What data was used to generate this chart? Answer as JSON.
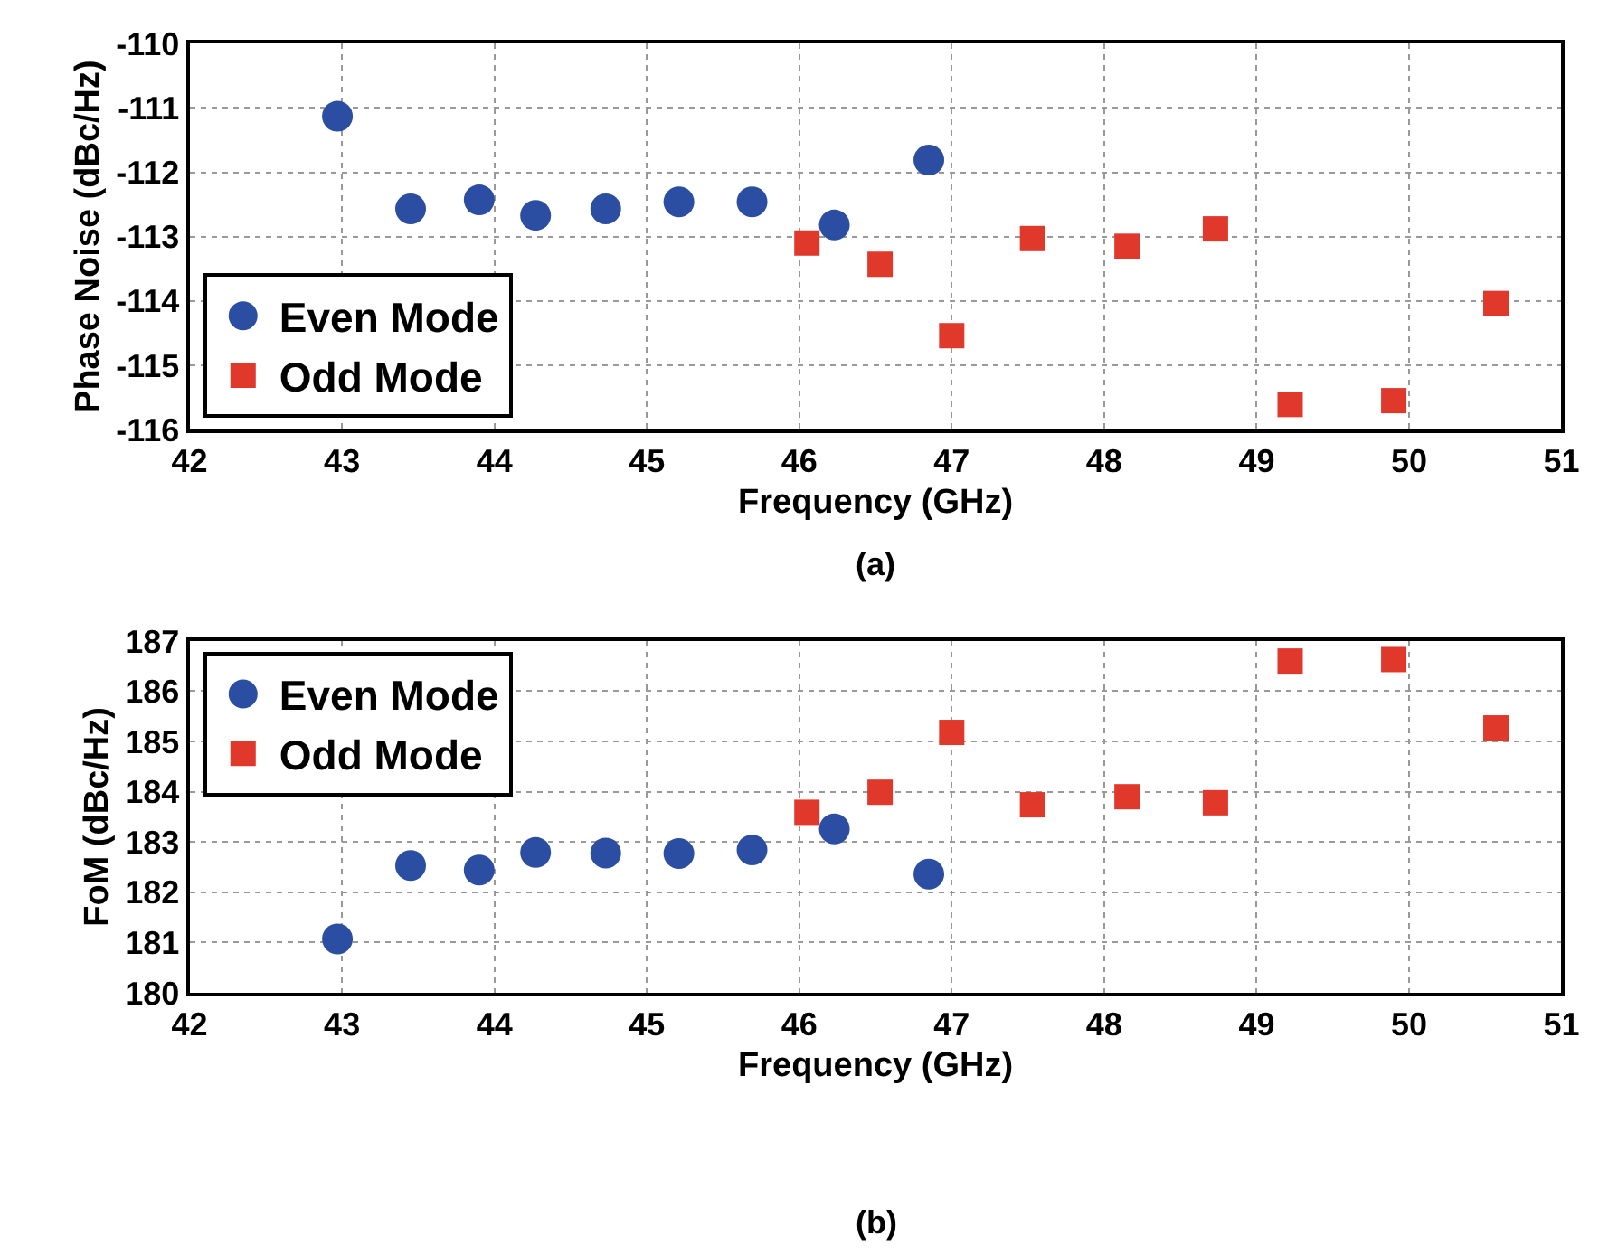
{
  "chart_data": [
    {
      "type": "scatter",
      "xlabel": "Frequency (GHz)",
      "ylabel": "Phase Noise (dBc/Hz)",
      "annotations": [
        "(a)"
      ],
      "xlim": [
        42,
        51
      ],
      "xticks": [
        42,
        43,
        44,
        45,
        46,
        47,
        48,
        49,
        50,
        51
      ],
      "ylim": [
        -116,
        -110
      ],
      "yticks": [
        -116,
        -115,
        -114,
        -113,
        -112,
        -111,
        -110
      ],
      "grid": true,
      "legend": "bottom left",
      "series": [
        {
          "name": "Even Mode",
          "color": "#2b4ea3",
          "marker": "circle",
          "x": [
            42.97,
            43.45,
            43.9,
            44.27,
            44.73,
            45.21,
            45.69,
            46.23,
            46.85
          ],
          "values": [
            -111.13,
            -112.57,
            -112.43,
            -112.67,
            -112.57,
            -112.46,
            -112.46,
            -112.82,
            -111.81
          ]
        },
        {
          "name": "Odd Mode",
          "color": "#e0382a",
          "marker": "square",
          "x": [
            46.05,
            46.53,
            47.0,
            47.53,
            48.15,
            48.73,
            49.22,
            49.9,
            50.57
          ],
          "values": [
            -113.1,
            -113.43,
            -114.54,
            -113.03,
            -113.15,
            -112.88,
            -115.61,
            -115.55,
            -114.04
          ]
        }
      ]
    },
    {
      "type": "scatter",
      "xlabel": "Frequency (GHz)",
      "ylabel": "FoM (dBc/Hz)",
      "annotations": [
        "(b)"
      ],
      "xlim": [
        42,
        51
      ],
      "xticks": [
        42,
        43,
        44,
        45,
        46,
        47,
        48,
        49,
        50,
        51
      ],
      "ylim": [
        180,
        187
      ],
      "yticks": [
        180,
        181,
        182,
        183,
        184,
        185,
        186,
        187
      ],
      "grid": true,
      "legend": "top left",
      "series": [
        {
          "name": "Even Mode",
          "color": "#2b4ea3",
          "marker": "circle",
          "x": [
            42.97,
            43.45,
            43.9,
            44.27,
            44.73,
            45.21,
            45.69,
            46.23,
            46.85
          ],
          "values": [
            181.07,
            182.53,
            182.44,
            182.79,
            182.78,
            182.77,
            182.84,
            183.26,
            182.36
          ]
        },
        {
          "name": "Odd Mode",
          "color": "#e0382a",
          "marker": "square",
          "x": [
            46.05,
            46.53,
            47.0,
            47.53,
            48.15,
            48.73,
            49.22,
            49.9,
            50.57
          ],
          "values": [
            183.59,
            183.99,
            185.18,
            183.74,
            183.9,
            183.78,
            186.6,
            186.63,
            185.27
          ]
        }
      ]
    }
  ]
}
